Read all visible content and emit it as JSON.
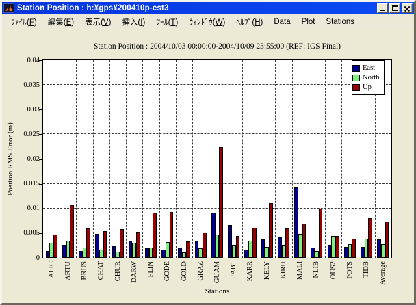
{
  "window": {
    "title": "Station Position : h:¥gps¥200410p-est3"
  },
  "menu": {
    "items": [
      {
        "pre": "ﾌｧｲﾙ(",
        "key": "F",
        "post": ")"
      },
      {
        "pre": "編集(",
        "key": "E",
        "post": ")"
      },
      {
        "pre": "表示(",
        "key": "V",
        "post": ")"
      },
      {
        "pre": "挿入(",
        "key": "I",
        "post": ")"
      },
      {
        "pre": "ﾂｰﾙ(",
        "key": "T",
        "post": ")"
      },
      {
        "pre": "ｳｨﾝﾄﾞｳ(",
        "key": "W",
        "post": ")"
      },
      {
        "pre": "ﾍﾙﾌﾟ(",
        "key": "H",
        "post": ")"
      },
      {
        "pre": "",
        "key": "D",
        "post": "ata"
      },
      {
        "pre": "",
        "key": "P",
        "post": "lot"
      },
      {
        "pre": "",
        "key": "S",
        "post": "tations"
      }
    ]
  },
  "chart_data": {
    "type": "bar",
    "title": "Station Position : 2004/10/03 00:00:00-2004/10/09 23:55:00 (REF: IGS Final)",
    "xlabel": "Stations",
    "ylabel": "Position RMS Error (m)",
    "ylim": [
      0,
      0.04
    ],
    "yticks": [
      0,
      0.005,
      0.01,
      0.015,
      0.02,
      0.025,
      0.03,
      0.035,
      0.04
    ],
    "ytick_labels": [
      "0",
      "0.005",
      "0.01",
      "0.015",
      "0.02",
      "0.025",
      "0.03",
      "0.035",
      "0.04"
    ],
    "grid": true,
    "legend_position": "top-right",
    "plot_bg": "#ffffff",
    "figure_bg": "#ece9d5",
    "categories": [
      "ALIC",
      "ARTU",
      "BRUS",
      "CHAT",
      "CHUR",
      "DARW",
      "FLIN",
      "GODE",
      "GOLD",
      "GRAZ",
      "GUAM",
      "JAB1",
      "KARR",
      "KELY",
      "KIRU",
      "MALI",
      "NLIB",
      "OUS2",
      "POTS",
      "TIDB",
      "Average"
    ],
    "series": [
      {
        "name": "East",
        "color": "#000099",
        "values": [
          0.0014,
          0.0026,
          0.0014,
          0.0048,
          0.0025,
          0.0034,
          0.002,
          0.0016,
          0.0021,
          0.0035,
          0.0092,
          0.0066,
          0.0017,
          0.0038,
          0.0041,
          0.0143,
          0.0021,
          0.0026,
          0.0022,
          0.0022,
          0.0037
        ]
      },
      {
        "name": "North",
        "color": "#7df07d",
        "values": [
          0.0031,
          0.0035,
          0.0021,
          0.0016,
          0.0012,
          0.0031,
          0.0021,
          0.0032,
          0.0011,
          0.0019,
          0.0047,
          0.0026,
          0.0034,
          0.0022,
          0.0027,
          0.0049,
          0.0014,
          0.0044,
          0.0028,
          0.0039,
          0.0028
        ]
      },
      {
        "name": "Up",
        "color": "#990000",
        "values": [
          0.0047,
          0.0106,
          0.006,
          0.0054,
          0.0058,
          0.0052,
          0.0092,
          0.0093,
          0.0033,
          0.0051,
          0.0224,
          0.0044,
          0.0061,
          0.0111,
          0.0059,
          0.0069,
          0.0099,
          0.0045,
          0.0039,
          0.008,
          0.0074
        ]
      }
    ]
  }
}
